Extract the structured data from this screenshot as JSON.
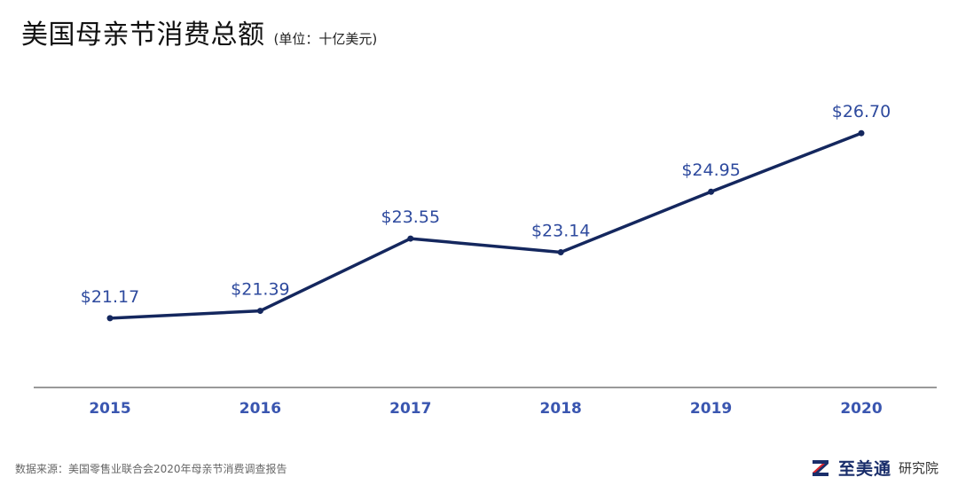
{
  "header": {
    "title": "美国母亲节消费总额",
    "unit": "(单位：十亿美元)"
  },
  "chart_data": {
    "type": "line",
    "categories": [
      "2015",
      "2016",
      "2017",
      "2018",
      "2019",
      "2020"
    ],
    "values": [
      21.17,
      21.39,
      23.55,
      23.14,
      24.95,
      26.7
    ],
    "data_labels": [
      "$21.17",
      "$21.39",
      "$23.55",
      "$23.14",
      "$24.95",
      "$26.70"
    ],
    "title": "美国母亲节消费总额",
    "ylim": [
      19.1,
      27.5
    ],
    "grid": false,
    "legend": "none",
    "line_color": "#14275e",
    "label_color": "#2e4a9e",
    "tick_color": "#3a56b0"
  },
  "footer": {
    "source": "数据来源：美国零售业联合会2020年母亲节消费调查报告",
    "brand_name": "至美通",
    "brand_sub": "研究院"
  },
  "colors": {
    "logo_red": "#e0242b",
    "logo_navy": "#1a2e6b"
  },
  "icons": {
    "brand_logo": "z-logo-icon"
  }
}
